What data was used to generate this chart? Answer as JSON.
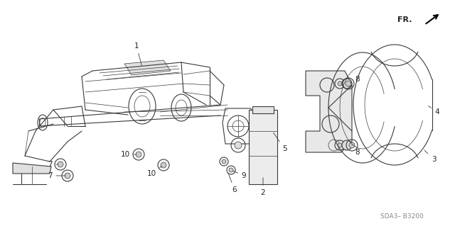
{
  "bg_color": "#ffffff",
  "fig_width": 6.4,
  "fig_height": 3.19,
  "dpi": 100,
  "watermark": "SDA3– B3200",
  "fr_label": "FR.",
  "line_color": "#3a3a3a",
  "label_color": "#222222",
  "watermark_color": "#888888"
}
